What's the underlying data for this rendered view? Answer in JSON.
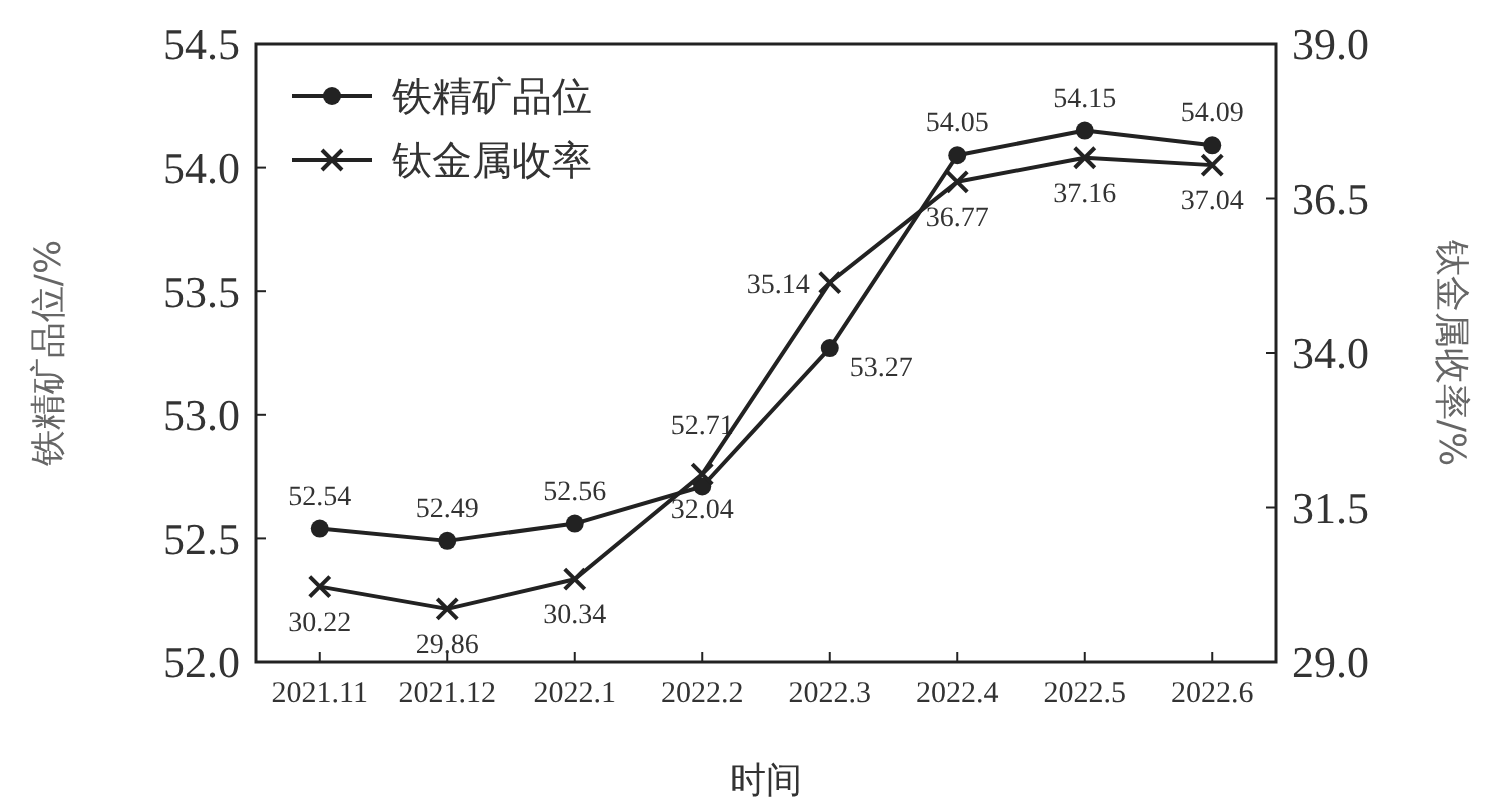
{
  "chart_data": {
    "type": "line",
    "xlabel": "时间",
    "ylabel": "铁精矿品位/%",
    "y2label": "钛金属收率/%",
    "categories": [
      "2021.11",
      "2021.12",
      "2022.1",
      "2022.2",
      "2022.3",
      "2022.4",
      "2022.5",
      "2022.6"
    ],
    "series": [
      {
        "name": "铁精矿品位",
        "color": "#222222",
        "marker": "circle",
        "values": [
          52.54,
          52.49,
          52.56,
          52.71,
          53.27,
          54.05,
          54.15,
          54.09
        ]
      },
      {
        "name": "钛金属收率",
        "color": "#222222",
        "marker": "cross",
        "axis": "y2",
        "values": [
          30.22,
          29.86,
          30.34,
          32.04,
          35.14,
          36.77,
          37.16,
          37.04
        ]
      }
    ],
    "ylim": [
      52.0,
      54.5
    ],
    "yticks": [
      {
        "value": 52,
        "label": "52.0"
      },
      52.5,
      {
        "value": 53,
        "label": "53.0"
      },
      53.5,
      {
        "value": 54,
        "label": "54.0"
      },
      54.5
    ],
    "y2lim": [
      29.0,
      39.0
    ],
    "y2ticks": [
      {
        "value": 29,
        "label": "29.0"
      },
      31.5,
      {
        "value": 34,
        "label": "34.0"
      },
      36.5,
      {
        "value": 39,
        "label": "39.0"
      }
    ],
    "legend": "top left",
    "data_labels": true,
    "grid": false
  }
}
